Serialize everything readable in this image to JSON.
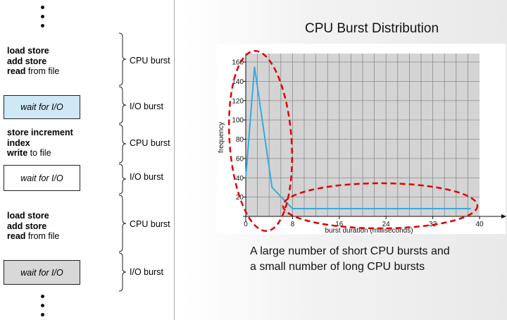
{
  "diagram": {
    "blocks": [
      {
        "kind": "cpu",
        "lines": [
          [
            "load store",
            ""
          ],
          [
            "add store",
            ""
          ],
          [
            "read",
            " from file"
          ]
        ],
        "label": "CPU burst"
      },
      {
        "kind": "io",
        "text": "wait for I/O",
        "fill": "#cfe8f6",
        "label": "I/O burst"
      },
      {
        "kind": "cpu",
        "lines": [
          [
            "store increment",
            ""
          ],
          [
            "index",
            ""
          ],
          [
            "write",
            " to file"
          ]
        ],
        "label": "CPU burst"
      },
      {
        "kind": "io",
        "text": "wait for I/O",
        "fill": "#ffffff",
        "label": "I/O burst"
      },
      {
        "kind": "cpu",
        "lines": [
          [
            "load store",
            ""
          ],
          [
            "add store",
            ""
          ],
          [
            "read",
            " from file"
          ]
        ],
        "label": "CPU burst"
      },
      {
        "kind": "io",
        "text": "wait for I/O",
        "fill": "#d8d8d8",
        "label": "I/O burst"
      }
    ]
  },
  "title": "CPU Burst Distribution",
  "caption_lines": [
    "A large number of short CPU bursts and",
    "a small number of long CPU bursts"
  ],
  "highlight_color": "#e00000",
  "line_color": "#3aa9dc",
  "chart_data": {
    "type": "line",
    "xlabel": "burst duration (milliseconds)",
    "ylabel": "frequency",
    "xlim": [
      0,
      40
    ],
    "ylim": [
      0,
      160
    ],
    "xticks": [
      0,
      8,
      16,
      24,
      32,
      40
    ],
    "yticks": [
      20,
      40,
      60,
      80,
      100,
      120,
      140,
      160
    ],
    "grid": true,
    "series": [
      {
        "x": [
          0,
          1.5,
          4.5,
          8,
          16,
          24,
          32,
          38.5
        ],
        "y": [
          40,
          155,
          30,
          8,
          8,
          8,
          8,
          8
        ]
      }
    ]
  }
}
